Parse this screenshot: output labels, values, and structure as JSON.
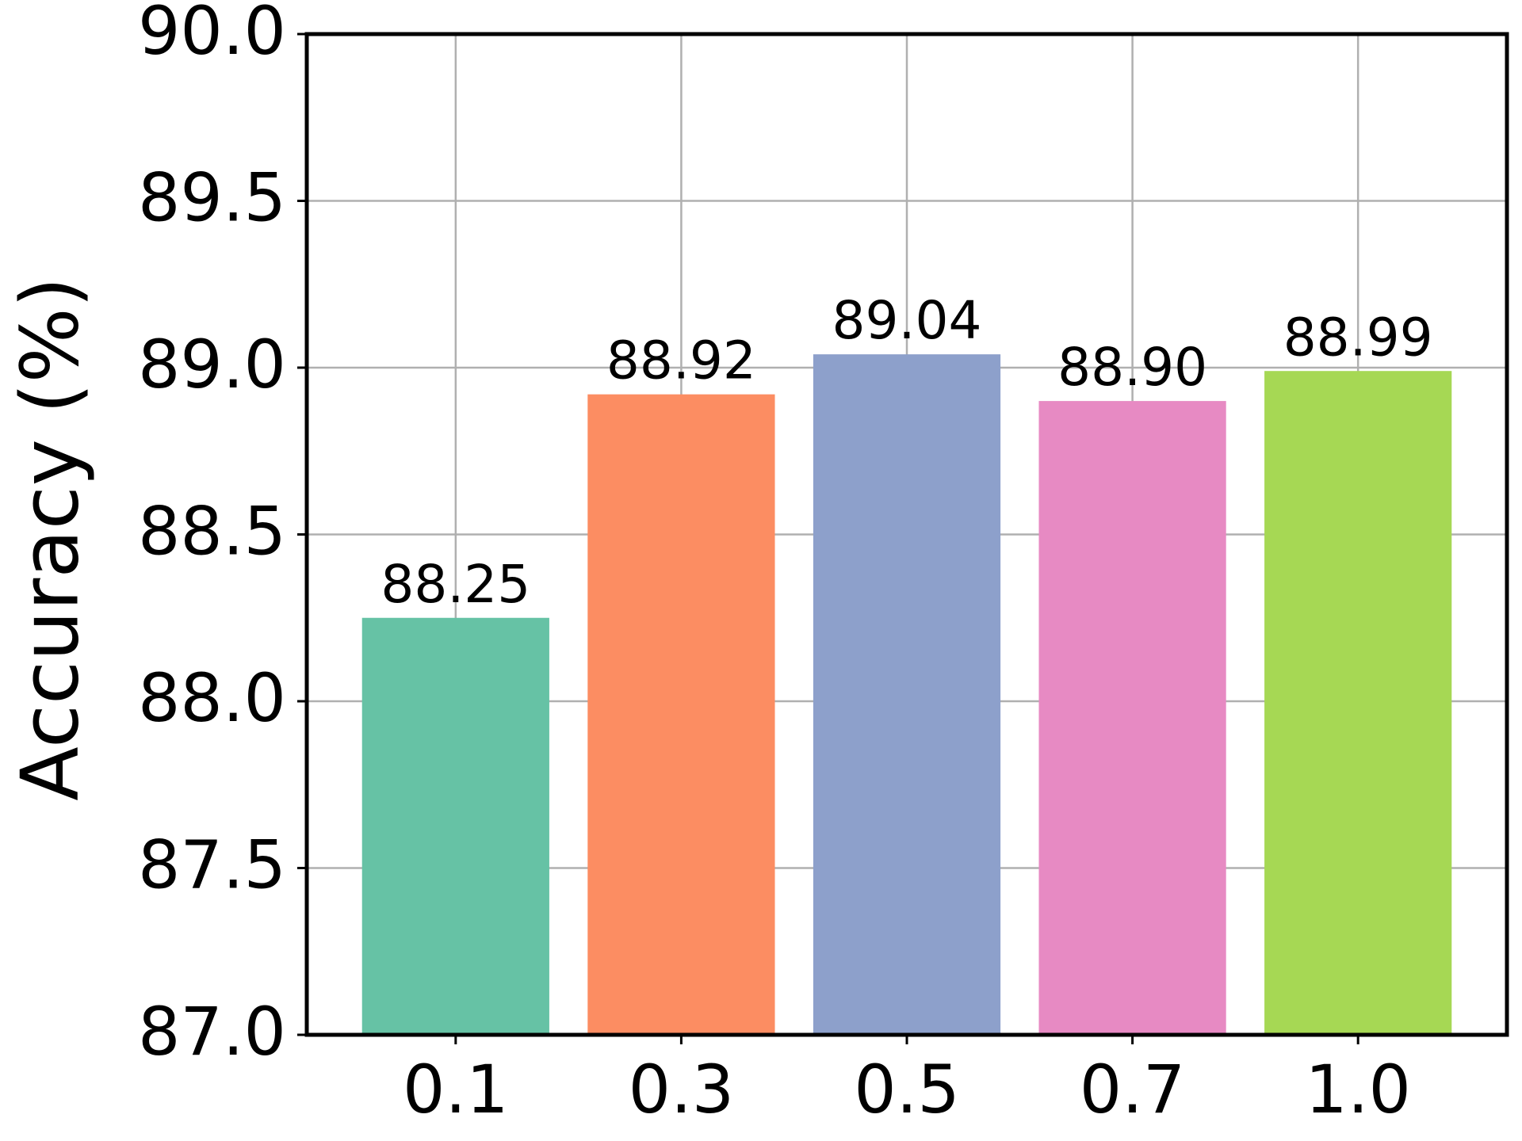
{
  "chart_data": {
    "type": "bar",
    "y_label": "Accuracy (%)",
    "categories": [
      "0.1",
      "0.3",
      "0.5",
      "0.7",
      "1.0"
    ],
    "values": [
      88.25,
      88.92,
      89.04,
      88.9,
      88.99
    ],
    "value_labels": [
      "88.25",
      "88.92",
      "89.04",
      "88.90",
      "88.99"
    ],
    "colors": [
      "#66c2a5",
      "#fc8d62",
      "#8da0cb",
      "#e78ac3",
      "#a6d854"
    ],
    "ylim": [
      87,
      90
    ],
    "yticks": [
      {
        "value": 87,
        "label": "87.0"
      },
      87.5,
      {
        "value": 88,
        "label": "88.0"
      },
      88.5,
      {
        "value": 89,
        "label": "89.0"
      },
      89.5,
      {
        "value": 90,
        "label": "90.0"
      }
    ],
    "grid": true
  }
}
